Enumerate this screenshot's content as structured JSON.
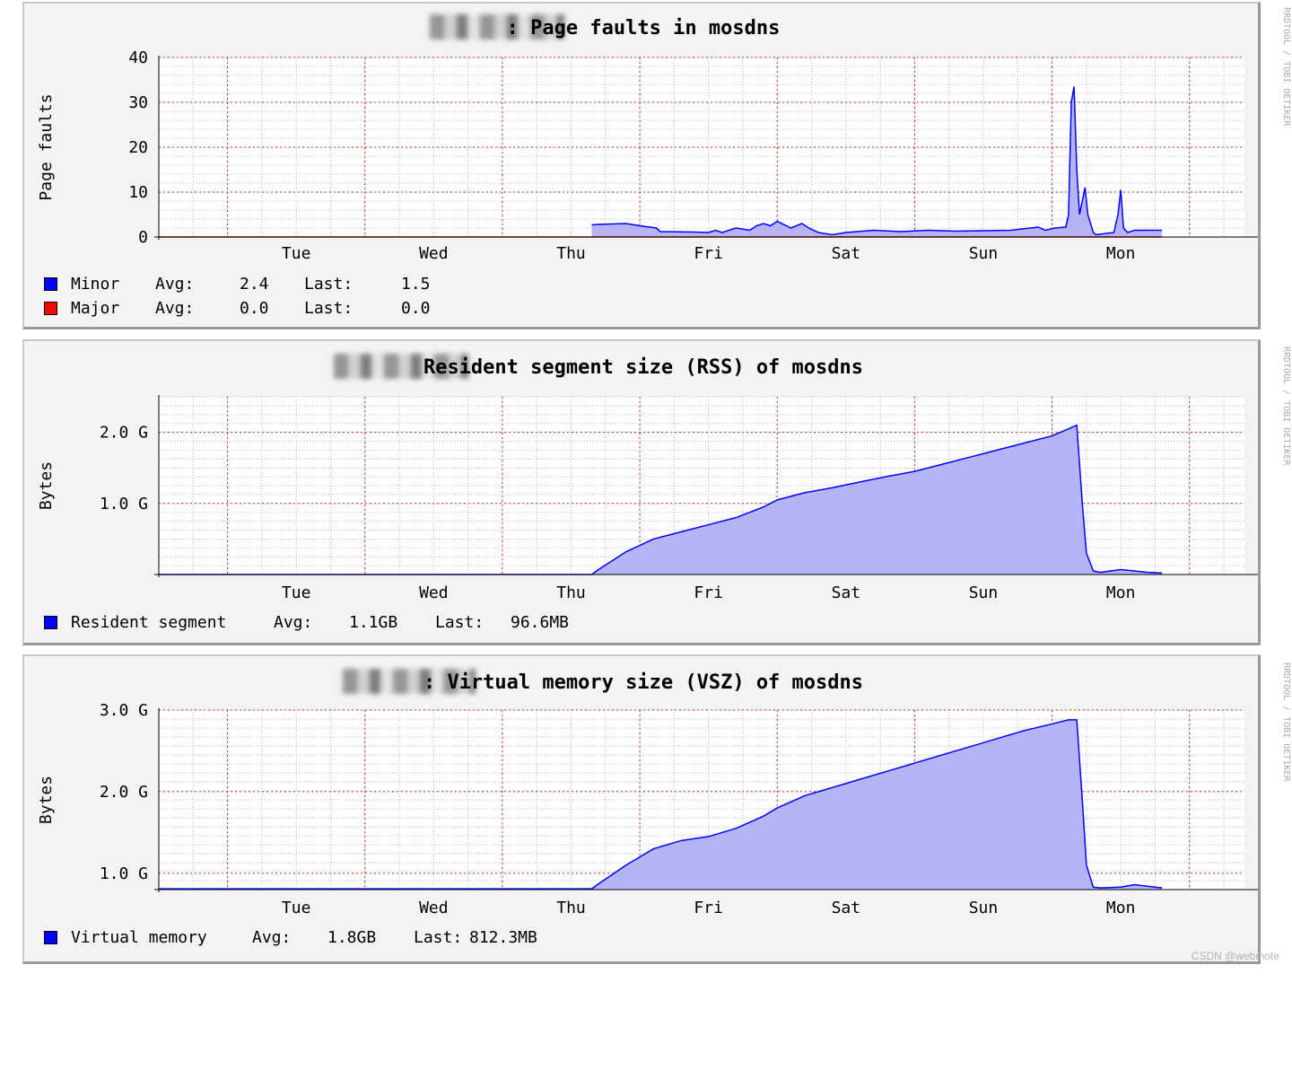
{
  "watermark": "RRDTOOL / TOBI OETIKER",
  "credit": "CSDN @webmote",
  "chart_data": [
    {
      "type": "area",
      "title": "Page faults in mosdns",
      "title_prefix": ":",
      "ylabel": "Page faults",
      "ylim": [
        0,
        40
      ],
      "yticks": [
        0,
        10,
        20,
        30,
        40
      ],
      "ytick_labels": [
        "0",
        "10",
        "20",
        "30",
        "40"
      ],
      "xlim": [
        0,
        7.9
      ],
      "xticks": [
        1,
        2,
        3,
        4,
        5,
        6,
        7
      ],
      "xtick_labels": [
        "Tue",
        "Wed",
        "Thu",
        "Fri",
        "Sat",
        "Sun",
        "Mon"
      ],
      "grid": true,
      "series": [
        {
          "name": "Minor",
          "color": "#0000ff",
          "fill": "#b5b5f5",
          "x": [
            3.15,
            3.2,
            3.4,
            3.5,
            3.62,
            3.65,
            3.9,
            4.0,
            4.05,
            4.1,
            4.2,
            4.3,
            4.35,
            4.4,
            4.45,
            4.5,
            4.6,
            4.68,
            4.73,
            4.8,
            4.9,
            5.0,
            5.2,
            5.4,
            5.6,
            5.8,
            6.0,
            6.2,
            6.4,
            6.45,
            6.52,
            6.6,
            6.62,
            6.64,
            6.66,
            6.68,
            6.7,
            6.72,
            6.74,
            6.76,
            6.8,
            6.82,
            6.95,
            6.98,
            7.0,
            7.02,
            7.05,
            7.1,
            7.3
          ],
          "y": [
            2.7,
            2.8,
            3.0,
            2.5,
            2.0,
            1.2,
            1.1,
            1.0,
            1.5,
            1.0,
            2.0,
            1.5,
            2.5,
            3.0,
            2.5,
            3.5,
            2.0,
            3.0,
            2.0,
            1.0,
            0.5,
            1.0,
            1.5,
            1.2,
            1.5,
            1.3,
            1.4,
            1.5,
            2.2,
            1.5,
            2.0,
            2.2,
            5.0,
            30.0,
            33.5,
            15.0,
            5.0,
            8.0,
            11.0,
            5.0,
            1.0,
            0.5,
            1.0,
            5.0,
            10.5,
            2.0,
            1.0,
            1.5,
            1.5
          ],
          "avg": "2.4",
          "last": "1.5"
        },
        {
          "name": "Major",
          "color": "#ff0000",
          "fill": null,
          "x": [
            0,
            7.3
          ],
          "y": [
            0.0,
            0.0
          ],
          "avg": "0.0",
          "last": "0.0"
        }
      ]
    },
    {
      "type": "area",
      "title": "Resident segment size (RSS) of mosdns",
      "title_prefix": "",
      "ylabel": "Bytes",
      "ylim": [
        0,
        2500000000
      ],
      "yticks": [
        1000000000,
        2000000000
      ],
      "ytick_labels": [
        "1.0 G",
        "2.0 G"
      ],
      "xlim": [
        0,
        7.9
      ],
      "xticks": [
        1,
        2,
        3,
        4,
        5,
        6,
        7
      ],
      "xtick_labels": [
        "Tue",
        "Wed",
        "Thu",
        "Fri",
        "Sat",
        "Sun",
        "Mon"
      ],
      "grid": true,
      "series": [
        {
          "name": "Resident segment",
          "color": "#0000ff",
          "fill": "#b5b5f5",
          "x": [
            0,
            3.15,
            3.2,
            3.4,
            3.6,
            3.8,
            4.0,
            4.2,
            4.4,
            4.5,
            4.7,
            4.9,
            5.1,
            5.3,
            5.5,
            5.7,
            5.9,
            6.1,
            6.3,
            6.5,
            6.62,
            6.68,
            6.72,
            6.75,
            6.8,
            6.85,
            7.0,
            7.2,
            7.3
          ],
          "y": [
            0,
            0,
            70000000,
            320000000,
            500000000,
            600000000,
            700000000,
            800000000,
            950000000,
            1050000000,
            1150000000,
            1220000000,
            1300000000,
            1380000000,
            1450000000,
            1550000000,
            1650000000,
            1750000000,
            1850000000,
            1950000000,
            2050000000,
            2100000000,
            1000000000,
            300000000,
            50000000,
            30000000,
            70000000,
            30000000,
            20000000
          ],
          "avg": "1.1GB",
          "last": "96.6MB"
        }
      ]
    },
    {
      "type": "area",
      "title": "Virtual memory size (VSZ) of mosdns",
      "title_prefix": ":",
      "ylabel": "Bytes",
      "ylim": [
        800000000,
        3000000000
      ],
      "yticks": [
        1000000000,
        2000000000,
        3000000000
      ],
      "ytick_labels": [
        "1.0 G",
        "2.0 G",
        "3.0 G"
      ],
      "xlim": [
        0,
        7.9
      ],
      "xticks": [
        1,
        2,
        3,
        4,
        5,
        6,
        7
      ],
      "xtick_labels": [
        "Tue",
        "Wed",
        "Thu",
        "Fri",
        "Sat",
        "Sun",
        "Mon"
      ],
      "grid": true,
      "series": [
        {
          "name": "Virtual memory",
          "color": "#0000ff",
          "fill": "#b5b5f5",
          "x": [
            0,
            3.15,
            3.2,
            3.4,
            3.6,
            3.8,
            4.0,
            4.2,
            4.4,
            4.5,
            4.7,
            4.9,
            5.1,
            5.3,
            5.5,
            5.7,
            5.9,
            6.1,
            6.3,
            6.5,
            6.62,
            6.68,
            6.72,
            6.75,
            6.8,
            6.85,
            7.0,
            7.1,
            7.3
          ],
          "y": [
            810000000,
            810000000,
            870000000,
            1100000000,
            1300000000,
            1400000000,
            1450000000,
            1550000000,
            1700000000,
            1800000000,
            1950000000,
            2050000000,
            2150000000,
            2250000000,
            2350000000,
            2450000000,
            2550000000,
            2650000000,
            2750000000,
            2830000000,
            2880000000,
            2880000000,
            1900000000,
            1100000000,
            830000000,
            820000000,
            830000000,
            860000000,
            820000000
          ],
          "avg": "1.8GB",
          "last": "812.3MB"
        }
      ]
    }
  ],
  "legend_labels": {
    "avg": "Avg:",
    "last": "Last:"
  }
}
